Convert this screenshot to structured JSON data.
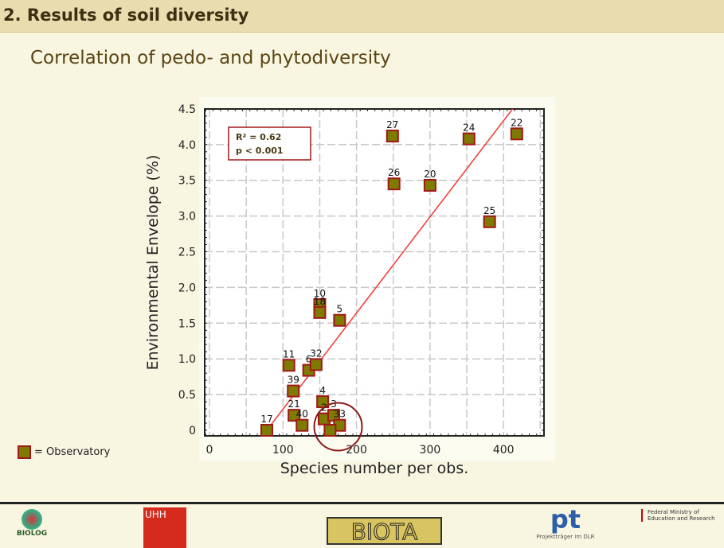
{
  "header": {
    "title": "2. Results of soil diversity"
  },
  "subtitle": "Correlation of pedo- and phytodiversity",
  "legend": {
    "label": "= Observatory",
    "marker_fill": "#7f7a00",
    "marker_border": "#a01818"
  },
  "footer": {
    "logos": [
      "BIOLOG",
      "UHH",
      "BIOTA",
      "pt",
      "Federal Ministry of Education and Research"
    ],
    "pt_caption": "Projektträger im DLR"
  },
  "chart_data": {
    "type": "scatter",
    "xlabel": "Species number per obs.",
    "ylabel": "Environmental Envelope (%)",
    "xlim": [
      -5,
      455
    ],
    "ylim": [
      -0.08,
      4.5
    ],
    "xticks": [
      "0",
      "100",
      "200",
      "300",
      "400"
    ],
    "yticks": [
      "0",
      "0.5",
      "1.0",
      "1.5",
      "2.0",
      "2.5",
      "3.0",
      "3.5",
      "4.0",
      "4.5"
    ],
    "grid": true,
    "annotation": {
      "r2": "R² = 0.62",
      "p": "p < 0.001"
    },
    "regression": {
      "slope": 0.01346,
      "intercept": -1.05,
      "color": "#f04040"
    },
    "highlight_circle": {
      "x": 175,
      "y": 0.05
    },
    "points": [
      {
        "label": "27",
        "x": 249,
        "y": 4.12
      },
      {
        "label": "24",
        "x": 353,
        "y": 4.08
      },
      {
        "label": "22",
        "x": 418,
        "y": 4.15
      },
      {
        "label": "26",
        "x": 251,
        "y": 3.45
      },
      {
        "label": "20",
        "x": 300,
        "y": 3.43
      },
      {
        "label": "25",
        "x": 381,
        "y": 2.92
      },
      {
        "label": "10",
        "x": 150,
        "y": 1.76
      },
      {
        "label": "18",
        "x": 150,
        "y": 1.65
      },
      {
        "label": "5",
        "x": 177,
        "y": 1.54
      },
      {
        "label": "11",
        "x": 108,
        "y": 0.91
      },
      {
        "label": "6",
        "x": 135,
        "y": 0.84
      },
      {
        "label": "32",
        "x": 145,
        "y": 0.92
      },
      {
        "label": "39",
        "x": 114,
        "y": 0.55
      },
      {
        "label": "4",
        "x": 154,
        "y": 0.4
      },
      {
        "label": "21",
        "x": 115,
        "y": 0.21
      },
      {
        "label": "40",
        "x": 126,
        "y": 0.07
      },
      {
        "label": "2",
        "x": 156,
        "y": 0.16
      },
      {
        "label": "3",
        "x": 169,
        "y": 0.21
      },
      {
        "label": "33",
        "x": 177,
        "y": 0.07
      },
      {
        "label": "17",
        "x": 78,
        "y": 0.0
      },
      {
        "label": "",
        "x": 164,
        "y": 0.0
      }
    ]
  }
}
